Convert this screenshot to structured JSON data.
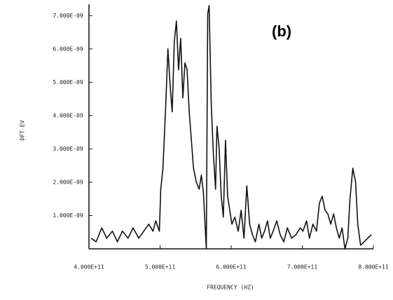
{
  "chart_data": {
    "type": "line",
    "annotation": "(b)",
    "x_label": "FREQUENCY (HZ)",
    "y_label": "DFT EV",
    "xlim": [
      400000000000.0,
      800000000000.0
    ],
    "ylim": [
      0,
      7.3e-09
    ],
    "xticks": [
      {
        "value": 400000000000.0,
        "label": "4.000E+11"
      },
      {
        "value": 500000000000.0,
        "label": "5.000E+11"
      },
      {
        "value": 600000000000.0,
        "label": "6.000E+11"
      },
      {
        "value": 700000000000.0,
        "label": "7.000E+11"
      },
      {
        "value": 800000000000.0,
        "label": "8.000E+11"
      }
    ],
    "yticks": [
      {
        "value": 1e-09,
        "label": "1.000E-09"
      },
      {
        "value": 2e-09,
        "label": "2.000E-09"
      },
      {
        "value": 3e-09,
        "label": "3.000E-09"
      },
      {
        "value": 4e-09,
        "label": "4.000E-09"
      },
      {
        "value": 5e-09,
        "label": "5.000E-09"
      },
      {
        "value": 6e-09,
        "label": "6.000E-09"
      },
      {
        "value": 7e-09,
        "label": "7.000E-09"
      }
    ],
    "color": "#111111",
    "x": [
      403000000000.0,
      410000000000.0,
      418000000000.0,
      425000000000.0,
      433000000000.0,
      440000000000.0,
      447000000000.0,
      455000000000.0,
      462000000000.0,
      470000000000.0,
      477000000000.0,
      484000000000.0,
      490000000000.0,
      494000000000.0,
      499000000000.0,
      501000000000.0,
      504000000000.0,
      508000000000.0,
      511000000000.0,
      514000000000.0,
      517000000000.0,
      520000000000.0,
      523000000000.0,
      526000000000.0,
      529000000000.0,
      532000000000.0,
      535000000000.0,
      538000000000.0,
      541000000000.0,
      544000000000.0,
      547000000000.0,
      551000000000.0,
      555000000000.0,
      558000000000.0,
      561000000000.0,
      565000000000.0,
      567000000000.0,
      569000000000.0,
      572000000000.0,
      575000000000.0,
      578000000000.0,
      580000000000.0,
      583000000000.0,
      586000000000.0,
      589000000000.0,
      592000000000.0,
      595000000000.0,
      598000000000.0,
      601000000000.0,
      605000000000.0,
      610000000000.0,
      614000000000.0,
      618000000000.0,
      622000000000.0,
      626000000000.0,
      630000000000.0,
      634000000000.0,
      639000000000.0,
      643000000000.0,
      647000000000.0,
      651000000000.0,
      655000000000.0,
      659000000000.0,
      664000000000.0,
      669000000000.0,
      674000000000.0,
      679000000000.0,
      685000000000.0,
      691000000000.0,
      697000000000.0,
      701000000000.0,
      706000000000.0,
      710000000000.0,
      715000000000.0,
      720000000000.0,
      724000000000.0,
      728000000000.0,
      732000000000.0,
      736000000000.0,
      740000000000.0,
      744000000000.0,
      748000000000.0,
      752000000000.0,
      756000000000.0,
      760000000000.0,
      764000000000.0,
      767000000000.0,
      771000000000.0,
      775000000000.0,
      778000000000.0,
      782000000000.0,
      787000000000.0,
      792000000000.0,
      797000000000.0
    ],
    "values": [
      3.2e-10,
      2.1e-10,
      6.3e-10,
      3.2e-10,
      5.3e-10,
      2.1e-10,
      5.3e-10,
      3.2e-10,
      6.3e-10,
      3.2e-10,
      5.3e-10,
      7.4e-10,
      5.3e-10,
      8.4e-10,
      5.3e-10,
      1.79e-09,
      2.42e-09,
      4.32e-09,
      6e-09,
      4.95e-09,
      4.11e-09,
      6.21e-09,
      6.84e-09,
      5.37e-09,
      6.32e-09,
      4.53e-09,
      5.58e-09,
      5.37e-09,
      4.11e-09,
      3.26e-09,
      2.42e-09,
      2e-09,
      1.79e-09,
      2.21e-09,
      1.68e-09,
      0,
      7.05e-09,
      7.3e-09,
      4.32e-09,
      2.84e-09,
      1.79e-09,
      3.68e-09,
      3.05e-09,
      1.58e-09,
      9.5e-10,
      3.26e-09,
      1.58e-09,
      1.16e-09,
      7.4e-10,
      9.5e-10,
      5.3e-10,
      1.16e-09,
      3.2e-10,
      1.89e-09,
      7.4e-10,
      4.2e-10,
      2.1e-10,
      7.4e-10,
      3.2e-10,
      5.3e-10,
      8.4e-10,
      3.2e-10,
      5.3e-10,
      8.4e-10,
      4.2e-10,
      2.1e-10,
      6.3e-10,
      3.2e-10,
      4.2e-10,
      6.3e-10,
      5.3e-10,
      8.4e-10,
      3.2e-10,
      7.4e-10,
      5.3e-10,
      1.37e-09,
      1.58e-09,
      1.16e-09,
      1.05e-09,
      7.4e-10,
      1.05e-09,
      6.3e-10,
      3.2e-10,
      6.3e-10,
      0,
      3.2e-10,
      1.47e-09,
      2.42e-09,
      2e-09,
      7.4e-10,
      1.1e-10,
      2.1e-10,
      3.2e-10,
      4.2e-10
    ]
  }
}
